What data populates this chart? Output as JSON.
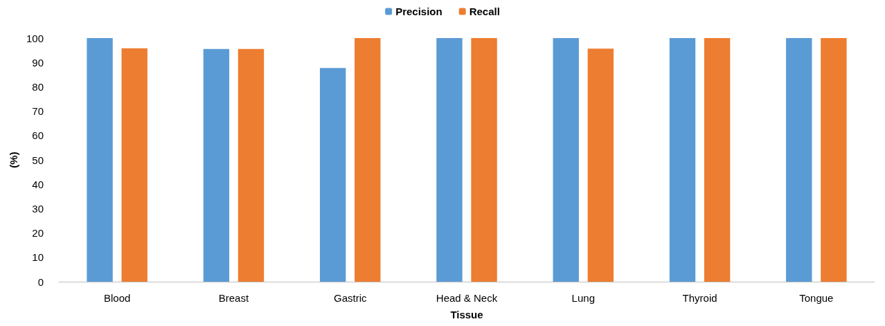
{
  "chart_data": {
    "type": "bar",
    "xlabel": "Tissue",
    "ylabel": "(%)",
    "categories": [
      "Blood",
      "Breast",
      "Gastric",
      "Head & Neck",
      "Lung",
      "Thyroid",
      "Tongue"
    ],
    "series": [
      {
        "name": "Precision",
        "color": "#5b9bd5",
        "values": [
          100,
          95.5,
          87.7,
          100,
          100,
          100,
          100
        ]
      },
      {
        "name": "Recall",
        "color": "#ed7d31",
        "values": [
          95.8,
          95.5,
          100,
          100,
          95.7,
          100,
          100
        ]
      }
    ],
    "ylim": [
      0,
      100
    ],
    "yticks": [
      0,
      10,
      20,
      30,
      40,
      50,
      60,
      70,
      80,
      90,
      100
    ],
    "grid": false,
    "legend": "top"
  }
}
